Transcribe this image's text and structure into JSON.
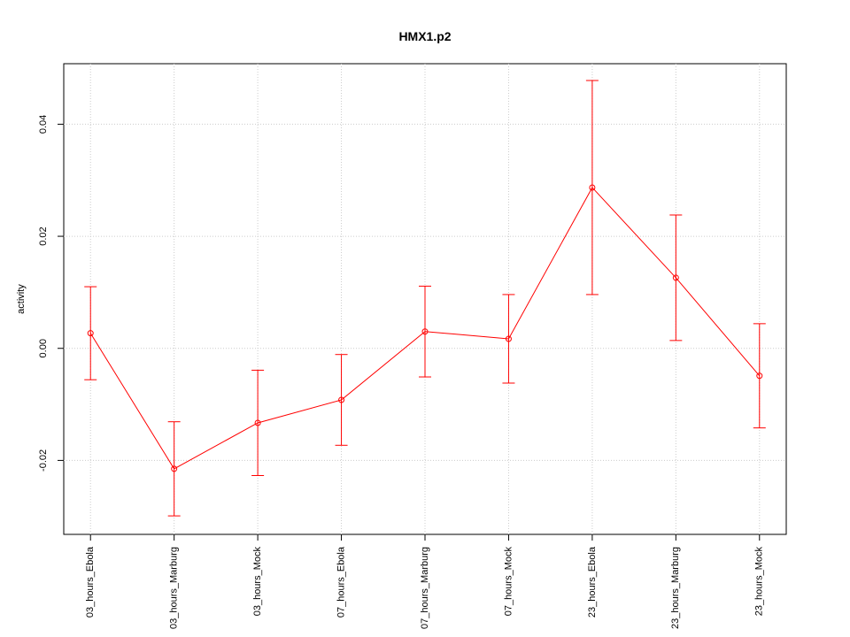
{
  "chart_data": {
    "type": "line",
    "title": "HMX1.p2",
    "y_label": "activity",
    "categories": [
      "03_hours_Ebola",
      "03_hours_Marburg",
      "03_hours_Mock",
      "07_hours_Ebola",
      "07_hours_Marburg",
      "07_hours_Mock",
      "23_hours_Ebola",
      "23_hours_Marburg",
      "23_hours_Mock"
    ],
    "series": [
      {
        "color": "#ff0000",
        "values": [
          0.0027,
          -0.0215,
          -0.0133,
          -0.0092,
          0.003,
          0.0017,
          0.0287,
          0.0126,
          -0.0049
        ],
        "errors": [
          0.0083,
          0.0084,
          0.0094,
          0.0081,
          0.0081,
          0.0079,
          0.0191,
          0.0112,
          0.0093
        ]
      }
    ],
    "ylim": [
      -0.0332,
      0.0508
    ],
    "yticks": [
      -0.02,
      {
        "value": 0,
        "label": "0.00"
      },
      0.02,
      0.04
    ],
    "grid": true
  }
}
